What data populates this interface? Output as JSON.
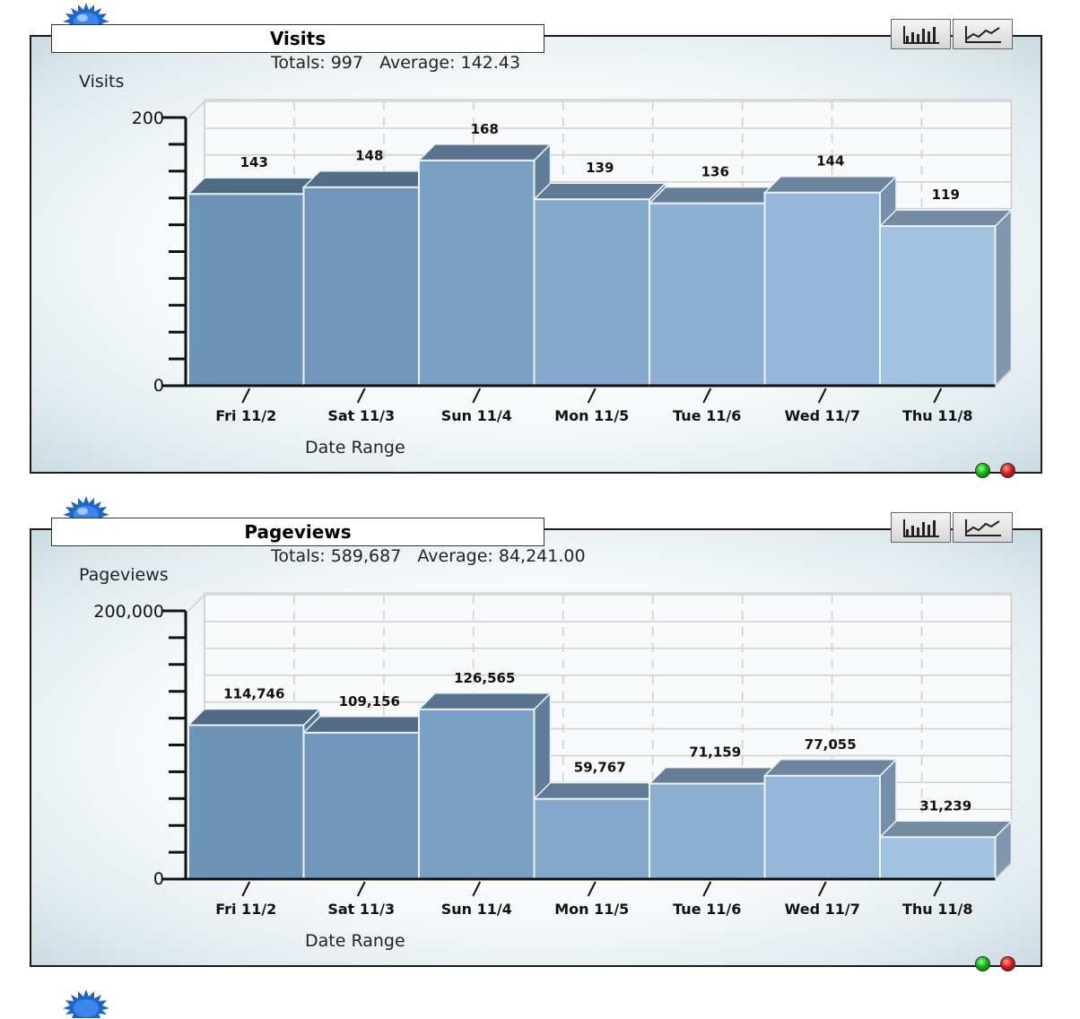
{
  "colors": {
    "bar_front": [
      "#6e93b8",
      "#7198bc",
      "#7ba0c5",
      "#86a8cd",
      "#8cafd2",
      "#96b7da",
      "#a3c1e0"
    ],
    "accent": "#2a6fd6",
    "status_green": "#13b213",
    "status_red": "#d51a1a"
  },
  "icons": {
    "badge": "blue-starburst-icon",
    "bar_view": "bar-chart-icon",
    "line_view": "line-chart-icon",
    "status_ok": "green-light-icon",
    "status_error": "red-light-icon"
  },
  "panels": [
    {
      "title": "Visits",
      "totals_text": "Totals: 997   Average: 142.43",
      "chart_data": {
        "type": "bar",
        "title": "Visits",
        "ylabel": "Visits",
        "xlabel": "Date Range",
        "categories": [
          "Fri 11/2",
          "Sat 11/3",
          "Sun 11/4",
          "Mon 11/5",
          "Tue 11/6",
          "Wed 11/7",
          "Thu 11/8"
        ],
        "values": [
          143,
          148,
          168,
          139,
          136,
          144,
          119
        ],
        "value_labels": [
          "143",
          "148",
          "168",
          "139",
          "136",
          "144",
          "119"
        ],
        "ylim": [
          0,
          200
        ],
        "y_tick_labels": [
          "0",
          "200"
        ],
        "grid": true,
        "style": "3d"
      }
    },
    {
      "title": "Pageviews",
      "totals_text": "Totals: 589,687   Average: 84,241.00",
      "chart_data": {
        "type": "bar",
        "title": "Pageviews",
        "ylabel": "Pageviews",
        "xlabel": "Date Range",
        "categories": [
          "Fri 11/2",
          "Sat 11/3",
          "Sun 11/4",
          "Mon 11/5",
          "Tue 11/6",
          "Wed 11/7",
          "Thu 11/8"
        ],
        "values": [
          114746,
          109156,
          126565,
          59767,
          71159,
          77055,
          31239
        ],
        "value_labels": [
          "114,746",
          "109,156",
          "126,565",
          "59,767",
          "71,159",
          "77,055",
          "31,239"
        ],
        "ylim": [
          0,
          200000
        ],
        "y_tick_labels": [
          "0",
          "200,000"
        ],
        "grid": true,
        "style": "3d"
      }
    }
  ]
}
